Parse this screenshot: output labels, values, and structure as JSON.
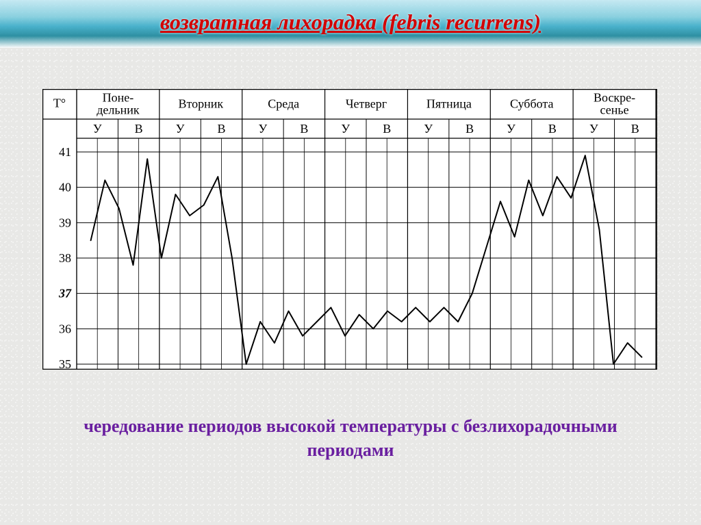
{
  "title": "возвратная лихорадка (febris recurrens)",
  "caption": "чередование периодов высокой температуры с безлихорадочными периодами",
  "ribbon_colors": [
    "#bfe9f4",
    "#7accde",
    "#2da7c6",
    "#0d8096"
  ],
  "title_color": "#d30000",
  "caption_color": "#6a1fa0",
  "page_background": "#e8e8e6",
  "chart": {
    "type": "line",
    "background_color": "#ffffff",
    "grid_color": "#000000",
    "grid_line_width": 1,
    "y_axis_label": "T°",
    "y_axis_label_fontsize": 18,
    "header_fontsize": 18,
    "subheader_fontsize": 18,
    "ytick_fontsize": 18,
    "ylim": [
      35,
      41
    ],
    "ytick_step": 1,
    "ytick_values": [
      35,
      36,
      37,
      38,
      39,
      40,
      41
    ],
    "days": [
      {
        "label": "Поне-\nдельник"
      },
      {
        "label": "Вторник"
      },
      {
        "label": "Среда"
      },
      {
        "label": "Четверг"
      },
      {
        "label": "Пятница"
      },
      {
        "label": "Суббота"
      },
      {
        "label": "Воскре-\nсенье"
      }
    ],
    "period_labels": [
      "У",
      "В"
    ],
    "line_color": "#000000",
    "line_width": 2,
    "values": [
      38.5,
      40.2,
      39.4,
      37.8,
      40.8,
      38.0,
      39.8,
      39.2,
      39.5,
      40.3,
      38.0,
      35.0,
      36.2,
      35.6,
      36.5,
      35.8,
      36.2,
      36.6,
      35.8,
      36.4,
      36.0,
      36.5,
      36.2,
      36.6,
      36.2,
      36.6,
      36.2,
      37.0,
      38.3,
      39.6,
      38.6,
      40.2,
      39.2,
      40.3,
      39.7,
      40.9,
      38.8,
      35.0,
      35.6,
      35.2
    ]
  }
}
